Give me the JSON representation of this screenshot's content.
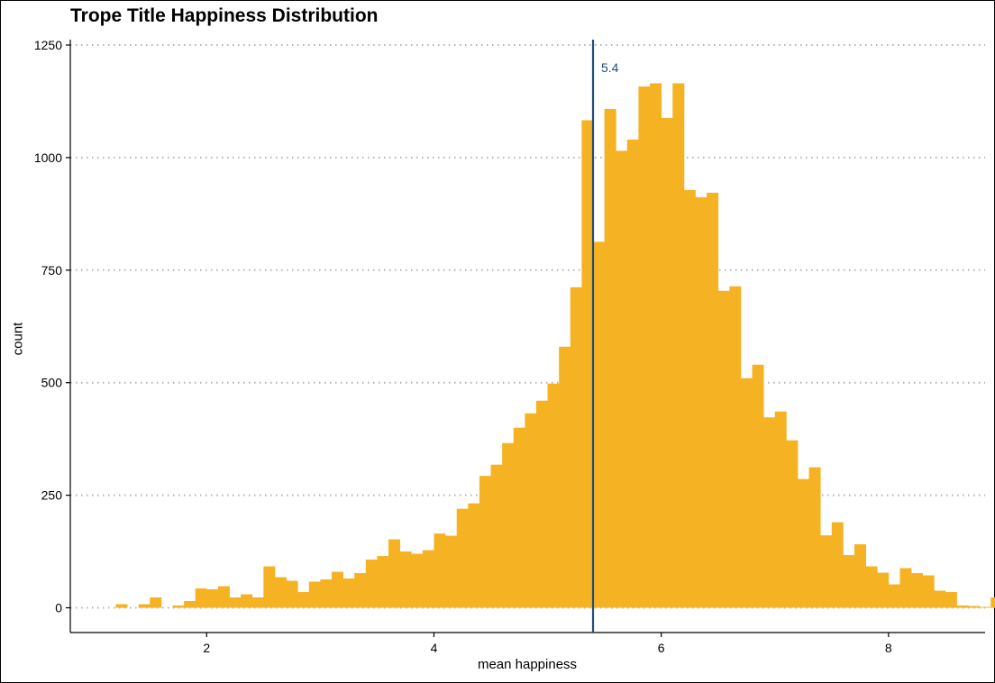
{
  "chart_data": {
    "type": "bar",
    "title": "Trope Title Happiness Distribution",
    "xlabel": "mean happiness",
    "ylabel": "count",
    "bar_color": "#F5B324",
    "line_color": "#1F4E79",
    "grid": "horizontal dotted",
    "xlim": [
      0.8,
      8.85
    ],
    "ylim": [
      -55,
      1262
    ],
    "x_ticks": [
      2,
      4,
      6,
      8
    ],
    "y_ticks": [
      0,
      250,
      500,
      750,
      1000,
      1250
    ],
    "bin_width": 0.1,
    "bin_start": 1.2,
    "values": [
      8,
      0,
      8,
      23,
      0,
      5,
      15,
      43,
      41,
      48,
      23,
      30,
      23,
      92,
      68,
      60,
      35,
      58,
      63,
      80,
      65,
      77,
      107,
      115,
      152,
      125,
      120,
      128,
      165,
      160,
      220,
      232,
      293,
      318,
      366,
      400,
      432,
      460,
      498,
      580,
      712,
      1083,
      813,
      1108,
      1015,
      1040,
      1158,
      1165,
      1088,
      1165,
      928,
      912,
      922,
      704,
      714,
      510,
      540,
      423,
      436,
      372,
      286,
      312,
      161,
      190,
      117,
      141,
      92,
      78,
      52,
      88,
      77,
      72,
      38,
      35,
      5,
      4,
      2,
      23,
      5
    ],
    "mean_line": {
      "x": 5.4,
      "label": "5.4"
    }
  }
}
